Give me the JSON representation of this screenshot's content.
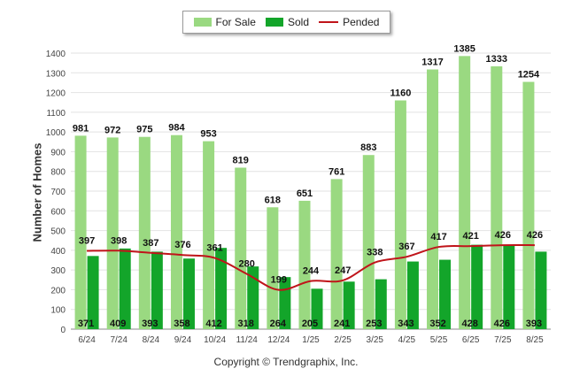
{
  "chart_data": {
    "type": "bar",
    "categories": [
      "6/24",
      "7/24",
      "8/24",
      "9/24",
      "10/24",
      "11/24",
      "12/24",
      "1/25",
      "2/25",
      "3/25",
      "4/25",
      "5/25",
      "6/25",
      "7/25",
      "8/25"
    ],
    "series": [
      {
        "name": "For Sale",
        "type": "bar",
        "color": "#9ad981",
        "values": [
          981,
          972,
          975,
          984,
          953,
          819,
          618,
          651,
          761,
          883,
          1160,
          1317,
          1385,
          1333,
          1254
        ]
      },
      {
        "name": "Sold",
        "type": "bar",
        "color": "#13a52a",
        "values": [
          371,
          409,
          393,
          358,
          412,
          318,
          264,
          205,
          241,
          253,
          343,
          352,
          428,
          426,
          393
        ]
      },
      {
        "name": "Pended",
        "type": "line",
        "color": "#c0141a",
        "values": [
          397,
          398,
          387,
          376,
          361,
          280,
          199,
          244,
          247,
          338,
          367,
          417,
          421,
          426,
          426
        ]
      }
    ],
    "ylabel": "Number of Homes",
    "ylim": [
      0,
      1400
    ],
    "yticks": [
      0,
      100,
      200,
      300,
      400,
      500,
      600,
      700,
      800,
      900,
      1000,
      1100,
      1200,
      1300,
      1400
    ],
    "grid": true,
    "legend_position": "top"
  },
  "footer": {
    "copyright": "Copyright © Trendgraphix, Inc."
  }
}
